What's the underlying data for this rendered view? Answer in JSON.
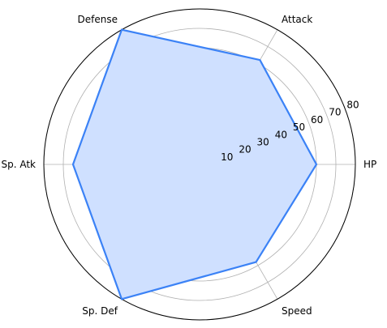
{
  "chart_data": {
    "type": "radar",
    "title": "",
    "categories": [
      "HP",
      "Attack",
      "Defense",
      "Sp. Atk",
      "Sp. Def",
      "Speed"
    ],
    "series": [
      {
        "values": [
          60,
          62,
          80,
          65,
          80,
          58
        ]
      }
    ],
    "rlim": [
      0,
      80
    ],
    "rticks": [
      10,
      20,
      30,
      40,
      50,
      60,
      70,
      80
    ],
    "grid": true,
    "colors": {
      "line": "#3b82f6",
      "fill": "#cfe0ff",
      "grid": "#b0b0b0",
      "spine": "#000000"
    }
  }
}
